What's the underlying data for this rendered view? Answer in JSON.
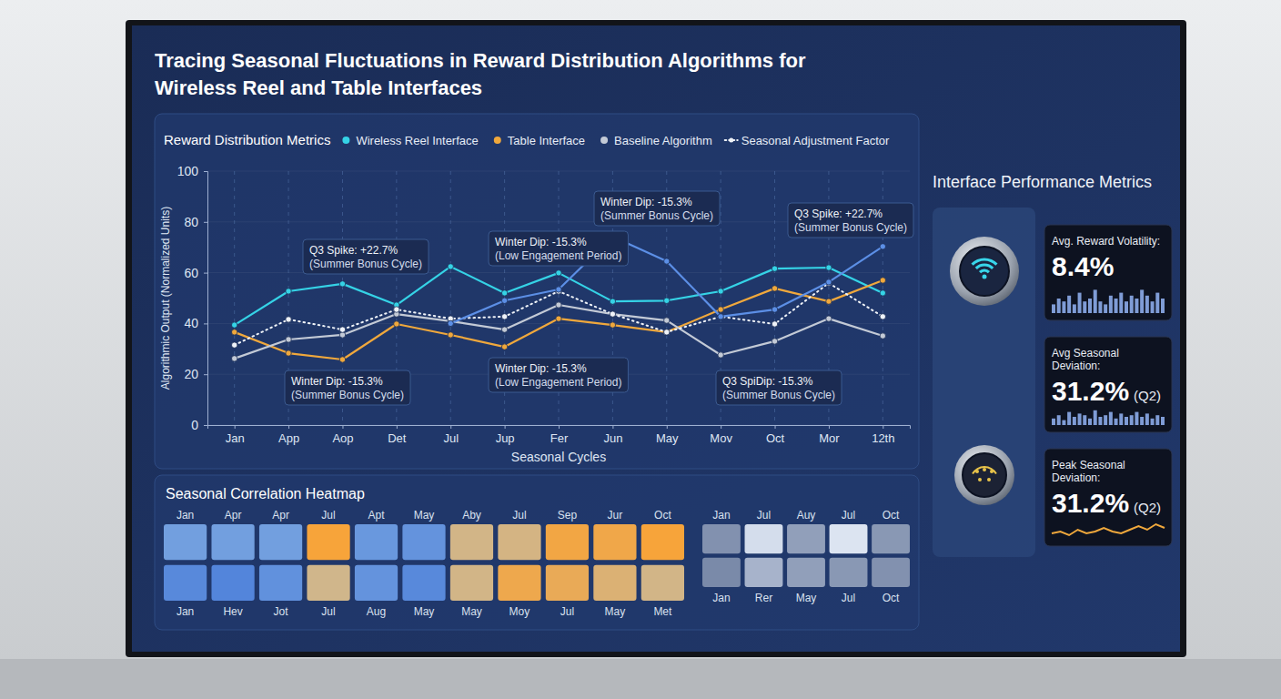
{
  "title": "Tracing Seasonal Fluctuations in Reward Distribution Algorithms for Wireless Reel and Table Interfaces",
  "chart_data": [
    {
      "type": "line",
      "legend_title": "Reward Distribution Metrics",
      "legend": "top",
      "categories": [
        "Jan",
        "App",
        "Aop",
        "Det",
        "Jul",
        "Jup",
        "Fer",
        "Jun",
        "May",
        "Mov",
        "Oct",
        "Mor",
        "12th"
      ],
      "xlabel": "Seasonal Cycles",
      "ylabel": "Algorithmic Output (Normalized Units)",
      "ylim": [
        0,
        100
      ],
      "yticks": [
        0,
        20,
        40,
        60,
        80,
        100
      ],
      "grid": true,
      "marker": "circle",
      "series": [
        {
          "name": "Wireless Reel Interface",
          "color": "#35d3e6",
          "values": [
            39.4,
            52.7,
            55.6,
            47.3,
            62.4,
            52,
            59.9,
            48.7,
            49,
            52.7,
            61.6,
            62,
            52
          ]
        },
        {
          "name": "Table Interface",
          "color": "#f0a83c",
          "values": [
            36.6,
            28.3,
            25.8,
            39.8,
            35.5,
            30.8,
            41.9,
            39.4,
            36.6,
            45.5,
            53.8,
            48.7,
            57
          ]
        },
        {
          "name": "Baseline Algorithm",
          "color": "#c3cad6",
          "values": [
            26.2,
            33.7,
            35.5,
            43.7,
            40.9,
            37.6,
            47.3,
            43.7,
            41.2,
            27.6,
            33,
            41.9,
            35.1
          ]
        },
        {
          "name": "Seasonal Adjustment Factor",
          "color": "#eef2f8",
          "line_style": "dotted",
          "values": [
            31.5,
            41.6,
            37.6,
            45.5,
            41.9,
            42.7,
            52.7,
            43.7,
            36.6,
            42.7,
            39.8,
            55.9,
            42.7
          ]
        },
        {
          "color": "#5c8fe6",
          "values": [
            null,
            null,
            null,
            null,
            40,
            49,
            53.4,
            74.2,
            64.5,
            42.7,
            45.5,
            56.3,
            70.3
          ]
        }
      ],
      "annotations": [
        {
          "label": "Q3 Spike: +22.7%",
          "note": "(Summer Bonus Cycle)"
        },
        {
          "label": "Winter Dip: -15.3%",
          "note": "(Summer Bonus Cycle)"
        },
        {
          "label": "Winter Dip: -15.3%",
          "note": "(Low Engagement Period)"
        },
        {
          "label": "Winter Dip: -15.3%",
          "note": "(Summer Bonus Cycle)"
        },
        {
          "label": "Winter Dip: -15.3%",
          "note": "(Low Engagement Period)"
        },
        {
          "label": "Q3 SpiDip: -15.3%",
          "note": "(Summer Bonus Cycle)"
        },
        {
          "label": "Q3 Spike: +22.7%",
          "note": "(Summer Bonus Cycle)"
        }
      ]
    },
    {
      "type": "heatmap",
      "title": "Seasonal Correlation Heatmap",
      "categories": [
        "Jan",
        "Apr",
        "Apr",
        "Jul",
        "Apt",
        "May",
        "Aby",
        "Jul",
        "Sep",
        "Jur",
        "Oct"
      ],
      "bottom_categories": [
        "Jan",
        "Hev",
        "Jot",
        "Jul",
        "Aug",
        "May",
        "May",
        "Moy",
        "Jul",
        "May",
        "Met"
      ],
      "zlim": [
        0,
        1
      ],
      "values": [
        [
          0.3,
          0.3,
          0.3,
          1,
          0.25,
          0.22,
          0.6,
          0.62,
          0.95,
          0.92,
          1
        ],
        [
          0.15,
          0.12,
          0.2,
          0.58,
          0.22,
          0.15,
          0.6,
          0.9,
          0.85,
          0.7,
          0.6
        ]
      ]
    },
    {
      "type": "heatmap",
      "categories": [
        "Jan",
        "Jul",
        "Auy",
        "Jul",
        "Oct"
      ],
      "bottom_categories": [
        "Jan",
        "Rer",
        "May",
        "Jul",
        "Oct"
      ],
      "zlim": [
        0,
        1
      ],
      "color": "#e3ebf7",
      "values": [
        [
          0.35,
          0.9,
          0.45,
          0.95,
          0.4
        ],
        [
          0.3,
          0.6,
          0.45,
          0.4,
          0.35
        ]
      ]
    }
  ],
  "metrics": {
    "title": "Interface Performance Metrics",
    "cards": [
      {
        "label": "Avg. Reward Volatility:",
        "value": "8.4%",
        "type": "bar",
        "color": "#7f9cd6",
        "ylim": [
          0,
          10
        ],
        "values": [
          3,
          5,
          4,
          6,
          3,
          7,
          4,
          5,
          8,
          4,
          3,
          6,
          5,
          7,
          4,
          6,
          5,
          8,
          6,
          4,
          7,
          5
        ]
      },
      {
        "label": "Avg Seasonal Deviation:",
        "value": "31.2%",
        "note": "(Q2)",
        "type": "bar",
        "color": "#7f9cd6",
        "ylim": [
          0,
          10
        ],
        "values": [
          4,
          6,
          3,
          8,
          5,
          7,
          6,
          4,
          9,
          5,
          6,
          8,
          4,
          7,
          5,
          6,
          8,
          5,
          7,
          4,
          6,
          5
        ]
      },
      {
        "label": "Peak Seasonal Deviation:",
        "value": "31.2%",
        "note": "(Q2)",
        "type": "line",
        "color": "#f0a83c",
        "ylim": [
          0,
          10
        ],
        "values": [
          3,
          4,
          2,
          5,
          3,
          4,
          6,
          4,
          3,
          5,
          7,
          5,
          8,
          6
        ]
      }
    ]
  }
}
